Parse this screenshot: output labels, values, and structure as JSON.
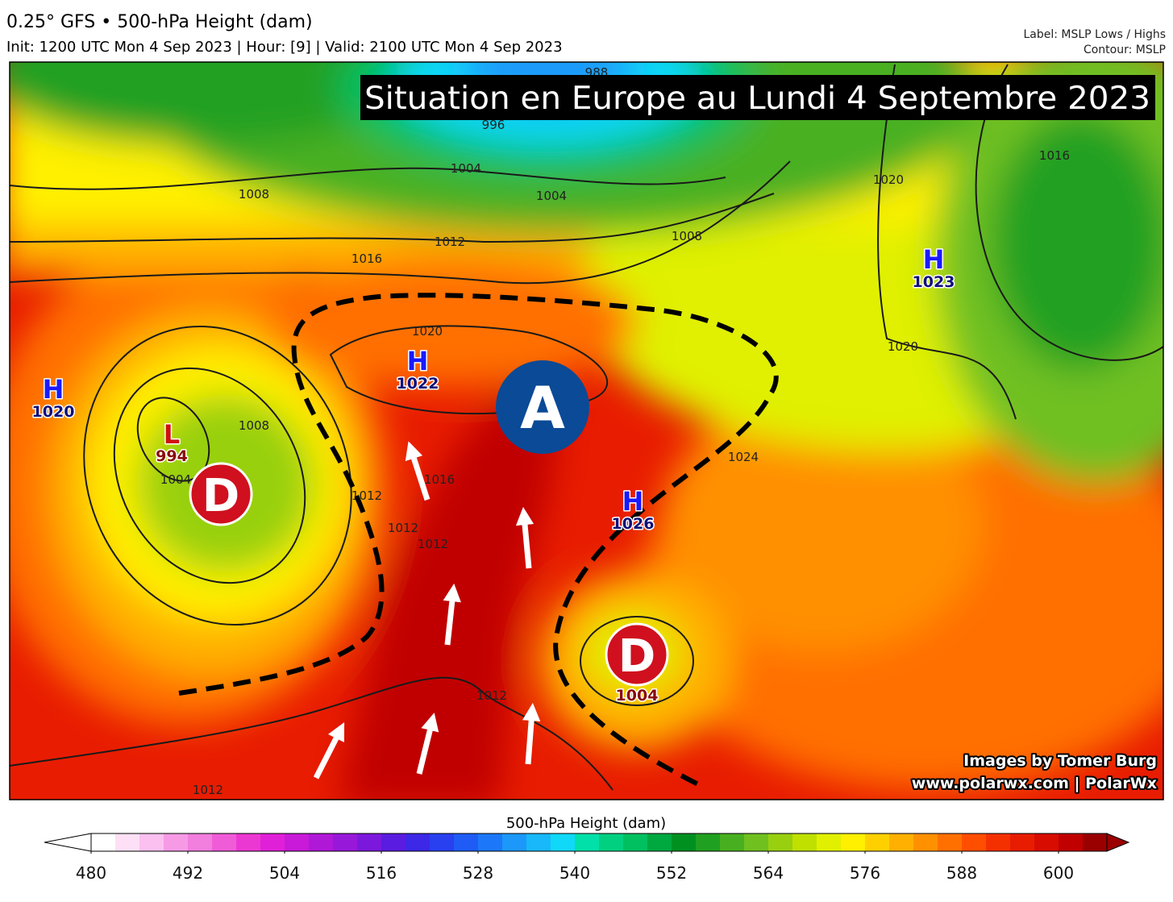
{
  "header": {
    "title": "0.25° GFS • 500-hPa Height (dam)",
    "subtitle": "Init: 1200 UTC Mon 4 Sep 2023 | Hour: [9] | Valid: 2100 UTC Mon 4 Sep 2023",
    "label_info": "Label: MSLP Lows / Highs",
    "contour_info": "Contour: MSLP"
  },
  "map": {
    "banner": "Situation en Europe au Lundi 4 Septembre 2023",
    "pressure_centers": [
      {
        "letter": "H",
        "value": "1020"
      },
      {
        "letter": "L",
        "value": "994"
      },
      {
        "letter": "H",
        "value": "1022"
      },
      {
        "letter": "H",
        "value": "1026"
      },
      {
        "letter": "H",
        "value": "1023"
      }
    ],
    "depression_value": "1004",
    "annotations": [
      "A",
      "D",
      "D"
    ],
    "contour_labels": [
      "988",
      "996",
      "1004",
      "1004",
      "1008",
      "1008",
      "1012",
      "1016",
      "1016",
      "1020",
      "1020",
      "1008",
      "1004",
      "1012",
      "1012",
      "1012",
      "1016",
      "1020",
      "1024",
      "1012",
      "1012"
    ],
    "credits": [
      "Images by Tomer Burg",
      "www.polarwx.com | PolarWx"
    ]
  },
  "colorbar": {
    "title": "500-hPa Height (dam)",
    "range": [
      480,
      606
    ],
    "ticks": [
      480,
      492,
      504,
      516,
      528,
      540,
      552,
      564,
      576,
      588,
      600
    ],
    "colors": [
      "#ffffff",
      "#fde0f5",
      "#fbc0ef",
      "#f79ae6",
      "#f27ede",
      "#f05cd8",
      "#ec38d2",
      "#e020d8",
      "#c81ad8",
      "#b018d8",
      "#9818da",
      "#7c18dc",
      "#5a1ce0",
      "#3c28e6",
      "#2840f0",
      "#1e5cf5",
      "#1c78f8",
      "#1c98fa",
      "#18b8fa",
      "#10d8f8",
      "#00e0a8",
      "#00d080",
      "#00c060",
      "#00a840",
      "#009020",
      "#20a020",
      "#48b020",
      "#70c020",
      "#98d010",
      "#c0e000",
      "#e0f000",
      "#fff000",
      "#ffd000",
      "#ffb000",
      "#ff9000",
      "#ff7000",
      "#ff4e00",
      "#f53000",
      "#e81c00",
      "#d80c00",
      "#c00000",
      "#9a0000"
    ]
  }
}
